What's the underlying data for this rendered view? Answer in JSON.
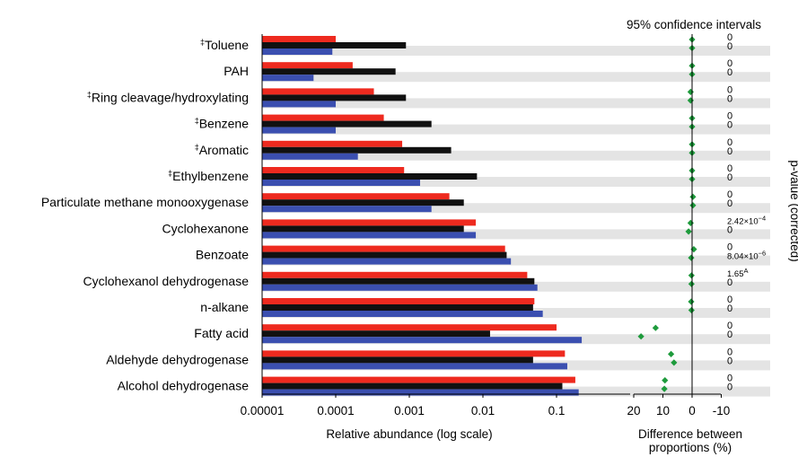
{
  "chart_data": {
    "type": "bar",
    "orientation": "horizontal",
    "categories": [
      {
        "mark": "‡",
        "text": "Toluene"
      },
      {
        "mark": "",
        "text": "PAH"
      },
      {
        "mark": "‡",
        "text": "Ring cleavage/hydroxylating"
      },
      {
        "mark": "‡",
        "text": "Benzene"
      },
      {
        "mark": "‡",
        "text": "Aromatic"
      },
      {
        "mark": "‡",
        "text": "Ethylbenzene"
      },
      {
        "mark": "",
        "text": "Particulate methane monooxygenase"
      },
      {
        "mark": "",
        "text": "Cyclohexanone"
      },
      {
        "mark": "",
        "text": "Benzoate"
      },
      {
        "mark": "",
        "text": "Cyclohexanol dehydrogenase"
      },
      {
        "mark": "",
        "text": "n-alkane"
      },
      {
        "mark": "",
        "text": "Fatty acid"
      },
      {
        "mark": "",
        "text": "Aldehyde dehydrogenase"
      },
      {
        "mark": "",
        "text": "Alcohol dehydrogenase"
      }
    ],
    "series": [
      {
        "color": "#ee2a1f",
        "values": [
          0.0001,
          0.00017,
          0.00033,
          0.00045,
          0.0008,
          0.00085,
          0.0035,
          0.008,
          0.02,
          0.04,
          0.05,
          0.1,
          0.13,
          0.18
        ]
      },
      {
        "color": "#111111",
        "values": [
          0.0009,
          0.00065,
          0.0009,
          0.002,
          0.0037,
          0.0083,
          0.0055,
          0.0055,
          0.021,
          0.05,
          0.048,
          0.0125,
          0.048,
          0.12
        ]
      },
      {
        "color": "#3b4fb0",
        "values": [
          9e-05,
          5e-05,
          0.0001,
          0.0001,
          0.0002,
          0.0014,
          0.002,
          0.008,
          0.024,
          0.055,
          0.065,
          0.22,
          0.14,
          0.2
        ]
      }
    ],
    "x_axis": {
      "scale": "log",
      "range": [
        1e-05,
        1
      ],
      "tick_labels": [
        "0.00001",
        "0.0001",
        "0.001",
        "0.01",
        "0.1"
      ],
      "label": "Relative abundance (log scale)"
    },
    "ci_panel": {
      "title": "95% confidence intervals",
      "x_range": [
        20,
        -10
      ],
      "tick_labels": [
        "20",
        "10",
        "0",
        "-10"
      ],
      "label_lines": [
        "Difference between",
        "proportions (%)"
      ],
      "marker_color": "#1e9b3c",
      "differences": [
        [
          0,
          0
        ],
        [
          0,
          0
        ],
        [
          0.5,
          0.5
        ],
        [
          0,
          0
        ],
        [
          0,
          0
        ],
        [
          0,
          0
        ],
        [
          -0.3,
          -0.3
        ],
        [
          0.5,
          1.2
        ],
        [
          -0.6,
          0.3
        ],
        [
          0.2,
          0.2
        ],
        [
          0.3,
          0.2
        ],
        [
          12.5,
          17.5
        ],
        [
          7.2,
          6.2
        ],
        [
          9.3,
          9.5
        ]
      ]
    },
    "p_values": [
      [
        "0",
        "0"
      ],
      [
        "0",
        "0"
      ],
      [
        "0",
        "0"
      ],
      [
        "0",
        "0"
      ],
      [
        "0",
        "0"
      ],
      [
        "0",
        "0"
      ],
      [
        "0",
        "0"
      ],
      [
        {
          "base": "2.42×10",
          "exp": "−4"
        },
        "0"
      ],
      [
        "0",
        {
          "base": "8.04×10",
          "exp": "−6"
        }
      ],
      [
        {
          "base": "1.65",
          "exp": "A"
        },
        "0"
      ],
      [
        "0",
        "0"
      ],
      [
        "0",
        "0"
      ],
      [
        "0",
        "0"
      ],
      [
        "0",
        "0"
      ]
    ],
    "p_axis_label": "p-value (corrected)",
    "grid": false
  }
}
